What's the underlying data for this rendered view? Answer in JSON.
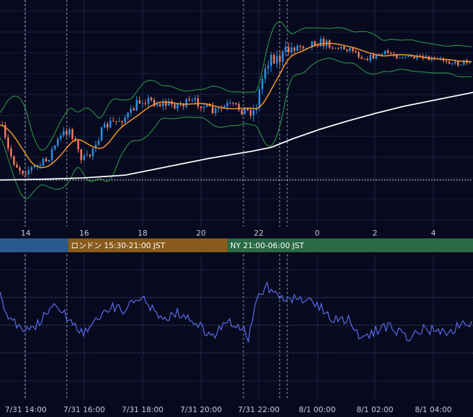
{
  "chart_data": [
    {
      "type": "candlestick",
      "title": "",
      "x_tick_labels": [
        "14",
        "16",
        "18",
        "20",
        "22",
        "0",
        "2",
        "4"
      ],
      "indicators": [
        "bollinger-bands",
        "moving-average-orange",
        "moving-average-white"
      ],
      "grid": true,
      "colors": {
        "background": "#070a1e",
        "bull": "#2f8fe0",
        "bear": "#f07a5a",
        "bands": "#2fa34a",
        "ma_mid": "#f0922a",
        "ma_long": "#ffffff"
      },
      "sessions": [
        {
          "label": "",
          "color": "#2a5a8c"
        },
        {
          "label": "ロンドン 15:30-21:00 JST",
          "color": "#8a5a1a"
        },
        {
          "label": "NY 21:00-06:00 JST",
          "color": "#2a6a45"
        }
      ]
    },
    {
      "type": "line",
      "title": "",
      "series_color": "#5a6ef0",
      "x_tick_labels": [
        "7/31 14:00",
        "7/31 16:00",
        "7/31 18:00",
        "7/31 20:00",
        "7/31 22:00",
        "8/1 00:00",
        "8/1 02:00",
        "8/1 04:00"
      ]
    }
  ]
}
